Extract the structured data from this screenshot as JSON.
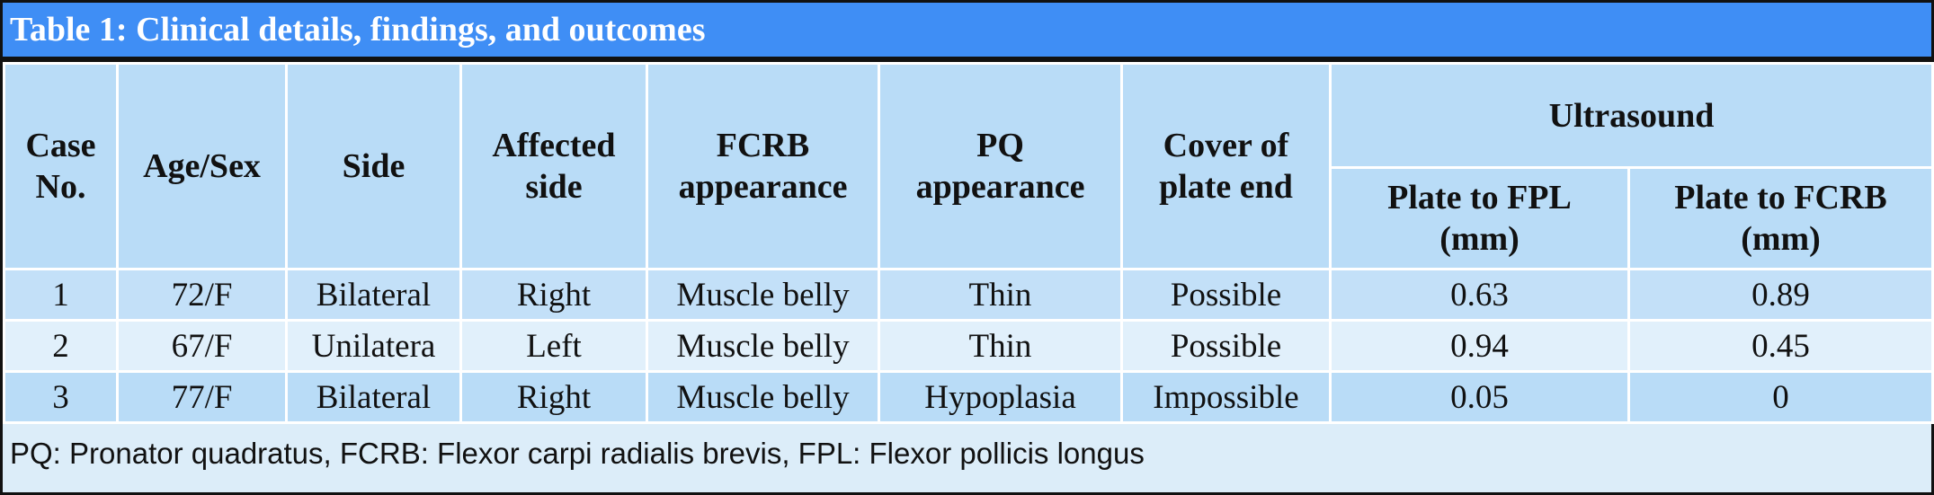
{
  "title": "Table 1: Clinical details, findings, and outcomes",
  "table": {
    "header": [
      "Case No.",
      "Age/Sex",
      "Side",
      "Affected side",
      "FCRB appearance",
      "PQ appearance",
      "Cover of plate end"
    ],
    "group": "Ultrasound",
    "subheader": [
      "Plate to FPL (mm)",
      "Plate to FCRB (mm)"
    ],
    "rows": [
      [
        "1",
        "72/F",
        "Bilateral",
        "Right",
        "Muscle belly",
        "Thin",
        "Possible",
        "0.63",
        "0.89"
      ],
      [
        "2",
        "67/F",
        "Unilatera",
        "Left",
        "Muscle belly",
        "Thin",
        "Possible",
        "0.94",
        "0.45"
      ],
      [
        "3",
        "77/F",
        "Bilateral",
        "Right",
        "Muscle belly",
        "Hypoplasia",
        "Impossible",
        "0.05",
        "0"
      ]
    ]
  },
  "footnote": "PQ: Pronator quadratus, FCRB: Flexor carpi radialis brevis, FPL: Flexor pollicis longus"
}
